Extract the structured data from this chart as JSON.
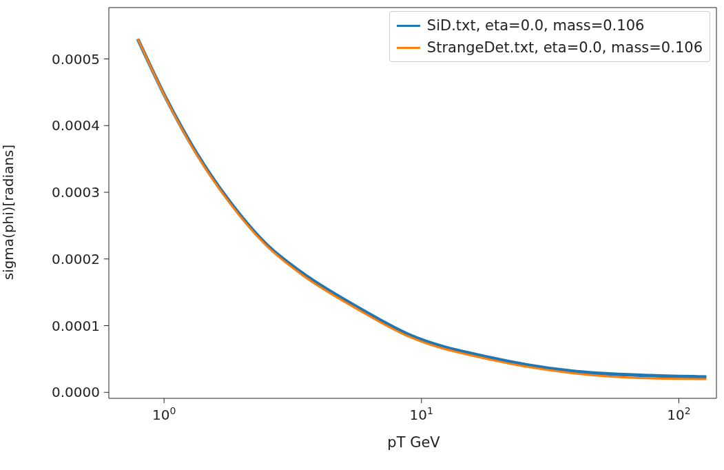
{
  "chart_data": {
    "type": "line",
    "xlabel": "pT  GeV",
    "ylabel": "sigma(phi)[radians]",
    "x": [
      0.79,
      1.03,
      1.34,
      1.79,
      2.48,
      3.44,
      5.56,
      8.99,
      18.5,
      38,
      78,
      128
    ],
    "series": [
      {
        "name": "SiD.txt, eta=0.0, mass=0.106",
        "color": "#1f77b4",
        "values": [
          0.00053,
          0.000437,
          0.000358,
          0.000287,
          0.000223,
          0.000179,
          0.000129,
          8.6e-05,
          5.2e-05,
          3.2e-05,
          2.5e-05,
          2.3e-05
        ]
      },
      {
        "name": "StrangeDet.txt, eta=0.0, mass=0.106",
        "color": "#ff7f0e",
        "values": [
          0.00053,
          0.000436,
          0.000356,
          0.000285,
          0.000221,
          0.000176,
          0.000126,
          8.3e-05,
          4.9e-05,
          2.9e-05,
          2.1e-05,
          2e-05
        ]
      }
    ],
    "log": "x",
    "xlim": [
      0.61,
      140
    ],
    "xticks": [
      {
        "value": 1,
        "label": "10$^{0}$"
      },
      {
        "value": 10,
        "label": "10$^{1}$"
      },
      {
        "value": 100,
        "label": "10$^{2}$"
      }
    ],
    "ylim": [
      -9e-06,
      0.000577
    ],
    "yticks": [
      {
        "value": 0,
        "label": "0.0000"
      },
      {
        "value": 0.0001,
        "label": "0.0001"
      },
      {
        "value": 0.0002,
        "label": "0.0002"
      },
      {
        "value": 0.0003,
        "label": "0.0003"
      },
      {
        "value": 0.0004,
        "label": "0.0004"
      },
      {
        "value": 0.0005,
        "label": "0.0005"
      }
    ],
    "grid": false,
    "legend": "top right",
    "marker": "none",
    "line_style": "solid"
  }
}
